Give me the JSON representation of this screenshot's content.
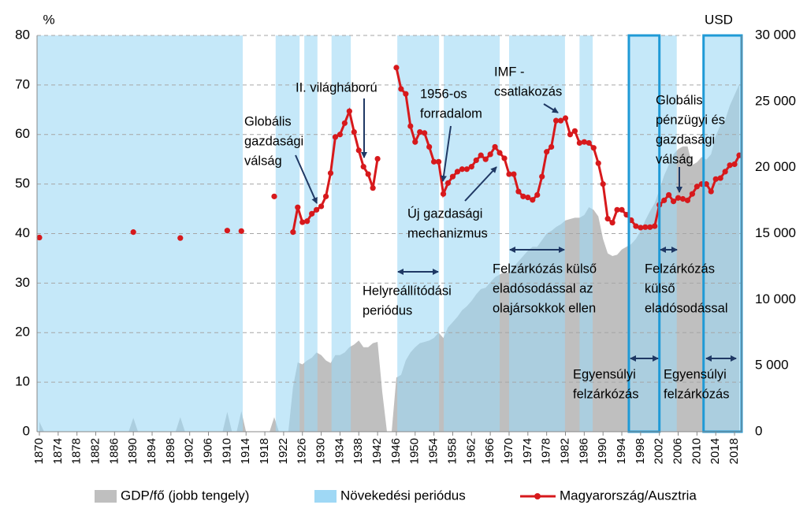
{
  "chart_data": {
    "type": "line",
    "y_unit": "%",
    "y2_unit": "USD",
    "xlim": [
      1869.5,
      2019.5
    ],
    "xticks": [
      1870,
      1874,
      1878,
      1882,
      1886,
      1890,
      1894,
      1898,
      1902,
      1906,
      1910,
      1914,
      1918,
      1922,
      1926,
      1930,
      1934,
      1938,
      1942,
      1946,
      1950,
      1954,
      1958,
      1962,
      1966,
      1970,
      1974,
      1978,
      1982,
      1986,
      1990,
      1994,
      1998,
      2002,
      2006,
      2010,
      2014,
      2018
    ],
    "ylim": [
      0,
      80
    ],
    "yticks": [
      0,
      10,
      20,
      30,
      40,
      50,
      60,
      70,
      80
    ],
    "y2lim": [
      0,
      30000
    ],
    "y2ticks": [
      0,
      {
        "value": 5000,
        "label": "5 000"
      },
      {
        "value": 10000,
        "label": "10 000"
      },
      {
        "value": 15000,
        "label": "15 000"
      },
      {
        "value": 20000,
        "label": "20 000"
      },
      {
        "value": 25000,
        "label": "25 000"
      },
      {
        "value": 30000,
        "label": "30 000"
      }
    ],
    "grid": true,
    "bands": {
      "name": "Növekedési periódus",
      "color": "#9fd8f5",
      "periods": [
        [
          1869.5,
          1913.3
        ],
        [
          1920.3,
          1925.4
        ],
        [
          1926.4,
          1929.2
        ],
        [
          1932.2,
          1936.3
        ],
        [
          1946.2,
          1955.1
        ],
        [
          1956.1,
          1968
        ],
        [
          1970,
          1981.9
        ],
        [
          1985,
          1987.8
        ],
        [
          1995.5,
          2002
        ],
        [
          2002.2,
          2005.7
        ],
        [
          2011.4,
          2019.5
        ]
      ]
    },
    "highlight_boxes": {
      "color": "#1f9ad6",
      "periods": [
        [
          1995.5,
          2002
        ],
        [
          2011.4,
          2019.5
        ]
      ]
    },
    "series": [
      {
        "name": "GDP/fő (jobb tengely)",
        "type": "area",
        "axis": "y2",
        "color": "#bfbfbf",
        "x": [
          1870,
          1871,
          1889,
          1890,
          1891,
          1899,
          1900,
          1901,
          1909,
          1910,
          1911,
          1912,
          1913,
          1914,
          1919,
          1920,
          1921,
          1923,
          1924,
          1925,
          1926,
          1927,
          1928,
          1929,
          1930,
          1931,
          1932,
          1933,
          1934,
          1935,
          1936,
          1937,
          1938,
          1939,
          1940,
          1941,
          1942,
          1943,
          1944,
          1945,
          1946,
          1947,
          1948,
          1949,
          1950,
          1951,
          1952,
          1953,
          1954,
          1955,
          1956,
          1957,
          1958,
          1959,
          1960,
          1961,
          1962,
          1963,
          1964,
          1965,
          1966,
          1967,
          1968,
          1969,
          1970,
          1971,
          1972,
          1973,
          1974,
          1975,
          1976,
          1977,
          1978,
          1979,
          1980,
          1981,
          1982,
          1983,
          1984,
          1985,
          1986,
          1987,
          1988,
          1989,
          1990,
          1991,
          1992,
          1993,
          1994,
          1995,
          1996,
          1997,
          1998,
          1999,
          2000,
          2001,
          2002,
          2003,
          2004,
          2005,
          2006,
          2007,
          2008,
          2009,
          2010,
          2011,
          2012,
          2013,
          2014,
          2015,
          2016,
          2017,
          2018,
          2019
        ],
        "values": [
          750,
          0,
          0,
          1050,
          0,
          0,
          1100,
          0,
          0,
          1500,
          0,
          0,
          1550,
          0,
          0,
          1100,
          0,
          0,
          3400,
          5250,
          5100,
          5400,
          5600,
          6000,
          5800,
          5400,
          5200,
          5800,
          5800,
          6000,
          6400,
          6600,
          6900,
          6400,
          6400,
          6700,
          6800,
          3000,
          0,
          0,
          4100,
          4300,
          5400,
          6000,
          6400,
          6700,
          6800,
          6900,
          7100,
          7500,
          7100,
          7900,
          8300,
          8700,
          9200,
          9500,
          9900,
          10400,
          10800,
          10900,
          11300,
          11700,
          11900,
          12100,
          12000,
          12500,
          12900,
          13300,
          13700,
          14000,
          14000,
          14500,
          15000,
          15200,
          15500,
          15700,
          16000,
          16100,
          16200,
          16200,
          16400,
          17000,
          16800,
          16300,
          14600,
          13500,
          13300,
          13400,
          13800,
          14000,
          14200,
          14600,
          15200,
          16000,
          16700,
          17300,
          18300,
          19400,
          20200,
          21000,
          21400,
          21600,
          21600,
          20200,
          20400,
          20800,
          20600,
          21000,
          22400,
          23200,
          23600,
          24700,
          25500,
          26300
        ]
      },
      {
        "name": "Magyarország/Ausztria",
        "type": "line",
        "color": "#d7191c",
        "x": [
          1870,
          1880,
          1890,
          1895,
          1900,
          1905,
          1910,
          1911,
          1913,
          1916,
          1920,
          1922,
          1924,
          1925,
          1926,
          1927,
          1928,
          1929,
          1930,
          1931,
          1932,
          1933,
          1934,
          1935,
          1936,
          1937,
          1938,
          1939,
          1940,
          1941,
          1942,
          1944,
          1946,
          1947,
          1948,
          1949,
          1950,
          1951,
          1952,
          1953,
          1954,
          1955,
          1956,
          1957,
          1958,
          1959,
          1960,
          1961,
          1962,
          1963,
          1964,
          1965,
          1966,
          1967,
          1968,
          1969,
          1970,
          1971,
          1972,
          1973,
          1974,
          1975,
          1976,
          1977,
          1978,
          1979,
          1980,
          1981,
          1982,
          1983,
          1984,
          1985,
          1986,
          1987,
          1988,
          1989,
          1990,
          1991,
          1992,
          1993,
          1994,
          1995,
          1996,
          1997,
          1998,
          1999,
          2000,
          2001,
          2002,
          2003,
          2004,
          2005,
          2006,
          2007,
          2008,
          2009,
          2010,
          2011,
          2012,
          2013,
          2014,
          2015,
          2016,
          2017,
          2018,
          2019
        ],
        "values": [
          39.2,
          null,
          40.3,
          null,
          39.1,
          null,
          40.6,
          null,
          40.5,
          null,
          47.5,
          null,
          40.3,
          45.3,
          42.3,
          42.5,
          44,
          44.8,
          45.5,
          47.5,
          52.2,
          59.5,
          60,
          62.3,
          64.7,
          60.5,
          56.8,
          53.5,
          52,
          49.2,
          55.1,
          null,
          73.5,
          69.2,
          68.2,
          61.7,
          58.5,
          60.5,
          60.3,
          57.5,
          54.5,
          54.5,
          48,
          50.2,
          51.5,
          52.5,
          53,
          53,
          53.5,
          54.8,
          55.8,
          55,
          56,
          57.5,
          56.3,
          55.2,
          52,
          52,
          48.5,
          47.5,
          47.3,
          46.8,
          47.8,
          51.5,
          56.5,
          57.5,
          62.8,
          62.8,
          63.3,
          60,
          60.7,
          58.3,
          58.5,
          58.3,
          57.3,
          54.2,
          50,
          43,
          42.2,
          44.8,
          44.8,
          43.8,
          42.7,
          41.5,
          41.2,
          41.3,
          41.3,
          41.5,
          45.8,
          46.7,
          47.8,
          46.5,
          47.2,
          47,
          46.7,
          48,
          49.5,
          50,
          50,
          48.5,
          51,
          51.2,
          52.5,
          53.8,
          54,
          55.8
        ]
      }
    ],
    "annotations": [
      [
        "Globális",
        "gazdasági",
        "válság"
      ],
      [
        "II. világháború"
      ],
      [
        "1956-os",
        "forradalom"
      ],
      [
        "IMF -",
        "csatlakozás"
      ],
      [
        "Új gazdasági",
        "mechanizmus"
      ],
      [
        "Globális",
        "pénzügyi és",
        "gazdasági",
        "válság"
      ],
      [
        "Helyreállítódási",
        "periódus"
      ],
      [
        "Felzárkózás külső",
        "eladósodással az",
        "olajársokkok ellen"
      ],
      [
        "Felzárkózás",
        "külső",
        "eladósodással"
      ],
      [
        "Egyensúlyi",
        "felzárkózás"
      ],
      [
        "Egyensúlyi",
        "felzárkózás"
      ]
    ]
  }
}
